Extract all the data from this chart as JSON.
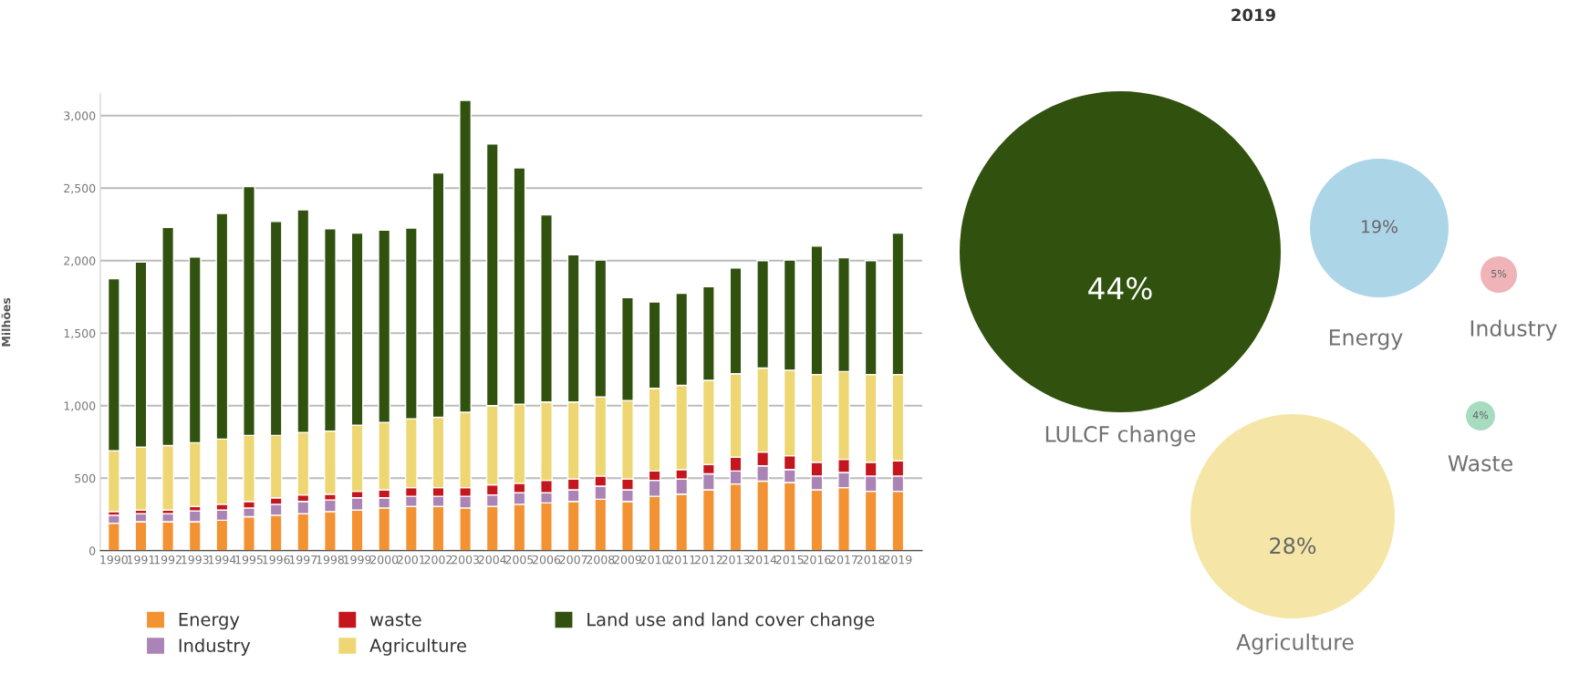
{
  "chart_data": [
    {
      "type": "bar",
      "stacked": true,
      "ylabel": "Milhões",
      "categories": [
        "1990",
        "1991",
        "1992",
        "1993",
        "1994",
        "1995",
        "1996",
        "1997",
        "1998",
        "1999",
        "2000",
        "2001",
        "2002",
        "2003",
        "2004",
        "2005",
        "2006",
        "2007",
        "2008",
        "2009",
        "2010",
        "2011",
        "2012",
        "2013",
        "2014",
        "2015",
        "2016",
        "2017",
        "2018",
        "2019"
      ],
      "series": [
        {
          "name": "Energy",
          "color": "#f39233",
          "values": [
            190,
            200,
            200,
            200,
            210,
            235,
            245,
            255,
            270,
            280,
            295,
            305,
            305,
            295,
            305,
            320,
            330,
            340,
            355,
            340,
            375,
            390,
            420,
            460,
            480,
            470,
            420,
            435,
            410,
            410
          ]
        },
        {
          "name": "Industry",
          "color": "#ab84b6",
          "values": [
            55,
            55,
            55,
            75,
            70,
            60,
            75,
            85,
            80,
            85,
            70,
            70,
            70,
            80,
            80,
            80,
            70,
            80,
            90,
            80,
            110,
            105,
            110,
            90,
            105,
            90,
            95,
            105,
            105,
            105
          ]
        },
        {
          "name": "waste",
          "color": "#c4161c",
          "values": [
            25,
            25,
            25,
            30,
            40,
            45,
            45,
            45,
            40,
            45,
            55,
            60,
            60,
            60,
            70,
            65,
            85,
            75,
            70,
            75,
            65,
            65,
            65,
            95,
            95,
            95,
            95,
            90,
            95,
            105
          ]
        },
        {
          "name": "Agriculture",
          "color": "#eed673",
          "values": [
            420,
            435,
            445,
            440,
            450,
            455,
            430,
            430,
            435,
            455,
            465,
            475,
            485,
            520,
            545,
            545,
            540,
            530,
            545,
            540,
            570,
            580,
            580,
            575,
            580,
            590,
            605,
            605,
            605,
            595
          ]
        },
        {
          "name": "Land use and land cover change",
          "color": "#31520f",
          "values": [
            1185,
            1275,
            1505,
            1280,
            1555,
            1715,
            1475,
            1535,
            1395,
            1325,
            1325,
            1315,
            1685,
            2150,
            1805,
            1630,
            1290,
            1015,
            945,
            710,
            595,
            635,
            645,
            730,
            740,
            760,
            885,
            785,
            785,
            975
          ]
        }
      ],
      "ylim": [
        0,
        3150
      ],
      "yticks": [
        0,
        500,
        {
          "value": 1000,
          "label": "1,000"
        },
        {
          "value": 1500,
          "label": "1,500"
        },
        {
          "value": 2000,
          "label": "2,000"
        },
        {
          "value": 2500,
          "label": "2,500"
        },
        {
          "value": 3000,
          "label": "3,000"
        }
      ],
      "grid": "y",
      "legend": "bottom"
    },
    {
      "type": "other",
      "title": "2019",
      "categories": [
        "LULCF change",
        "Energy",
        "Industry",
        "Waste",
        "Agriculture"
      ],
      "values": [
        44,
        19,
        5,
        4,
        28
      ],
      "colors": [
        "#31520f",
        "#acd6e8",
        "#f0b3b8",
        "#a8dcc0",
        "#f5e6a8"
      ],
      "value_labels": [
        "44%",
        "19%",
        "5%",
        "4%",
        "28%"
      ]
    }
  ]
}
